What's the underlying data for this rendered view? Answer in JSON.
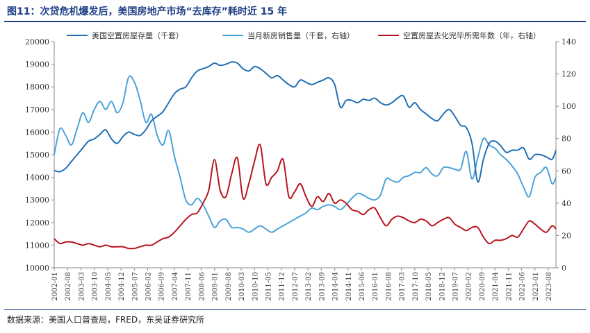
{
  "title": "图11：次贷危机爆发后，美国房地产市场“去库存”耗时近 15 年",
  "source": "数据来源：美国人口普查局，FRED，东吴证券研究所",
  "chart_data": {
    "type": "line",
    "legend_placement": "top",
    "grid": false,
    "x": [
      "2002-01",
      "2002-04",
      "2002-07",
      "2002-10",
      "2003-01",
      "2003-04",
      "2003-07",
      "2003-10",
      "2004-01",
      "2004-04",
      "2004-07",
      "2004-10",
      "2005-01",
      "2005-04",
      "2005-07",
      "2005-10",
      "2006-01",
      "2006-04",
      "2006-07",
      "2006-10",
      "2007-01",
      "2007-04",
      "2007-07",
      "2007-10",
      "2008-01",
      "2008-04",
      "2008-07",
      "2008-10",
      "2009-01",
      "2009-04",
      "2009-07",
      "2009-10",
      "2010-01",
      "2010-04",
      "2010-07",
      "2010-10",
      "2011-01",
      "2011-04",
      "2011-07",
      "2011-10",
      "2012-01",
      "2012-04",
      "2012-07",
      "2012-10",
      "2013-01",
      "2013-04",
      "2013-07",
      "2013-10",
      "2014-01",
      "2014-04",
      "2014-07",
      "2014-10",
      "2015-01",
      "2015-04",
      "2015-07",
      "2015-10",
      "2016-01",
      "2016-04",
      "2016-07",
      "2016-10",
      "2017-01",
      "2017-04",
      "2017-07",
      "2017-10",
      "2018-01",
      "2018-04",
      "2018-07",
      "2018-10",
      "2019-01",
      "2019-04",
      "2019-07",
      "2019-10",
      "2020-01",
      "2020-04",
      "2020-07",
      "2020-10",
      "2021-01",
      "2021-04",
      "2021-07",
      "2021-10",
      "2022-01",
      "2022-04",
      "2022-07",
      "2022-10",
      "2023-01",
      "2023-04",
      "2023-07",
      "2023-10",
      "2023-12"
    ],
    "x_tick_labels": [
      "2002-01",
      "2002-08",
      "2003-03",
      "2003-10",
      "2004-05",
      "2004-12",
      "2005-07",
      "2006-02",
      "2006-09",
      "2007-04",
      "2007-11",
      "2008-06",
      "2009-01",
      "2009-08",
      "2010-03",
      "2010-10",
      "2011-05",
      "2011-12",
      "2012-07",
      "2013-02",
      "2013-09",
      "2014-04",
      "2014-11",
      "2015-06",
      "2016-01",
      "2016-08",
      "2017-03",
      "2017-10",
      "2018-05",
      "2018-12",
      "2019-07",
      "2020-02",
      "2020-09",
      "2021-04",
      "2021-11",
      "2022-06",
      "2023-01",
      "2023-08"
    ],
    "y_left": {
      "min": 10000,
      "max": 20000,
      "ticks": [
        10000,
        11000,
        12000,
        13000,
        14000,
        15000,
        16000,
        17000,
        18000,
        19000,
        20000
      ]
    },
    "y_right": {
      "min": 0,
      "max": 140,
      "ticks": [
        0,
        20,
        40,
        60,
        80,
        100,
        120,
        140
      ]
    },
    "series": [
      {
        "name": "美国空置房屋存量（千套）",
        "axis": "left",
        "color": "#1f6fb5",
        "values": [
          14300,
          14250,
          14400,
          14700,
          15000,
          15300,
          15600,
          15700,
          15900,
          16100,
          15700,
          15500,
          15800,
          16000,
          15900,
          15850,
          16100,
          16500,
          16700,
          16900,
          17300,
          17700,
          17900,
          18000,
          18400,
          18700,
          18800,
          18900,
          19050,
          18950,
          19000,
          19100,
          19050,
          18800,
          18700,
          18900,
          18800,
          18600,
          18400,
          18500,
          18300,
          18100,
          18000,
          18300,
          18200,
          18100,
          18200,
          18300,
          18400,
          18100,
          17100,
          17400,
          17400,
          17300,
          17450,
          17400,
          17500,
          17300,
          17200,
          17300,
          17500,
          17600,
          17100,
          17300,
          17000,
          16800,
          16600,
          16500,
          16800,
          17000,
          16700,
          16300,
          16200,
          15500,
          13800,
          14800,
          15500,
          15600,
          15400,
          15100,
          15200,
          15200,
          15300,
          14800,
          15000,
          15000,
          14900,
          14800,
          15200
        ]
      },
      {
        "name": "当月新房销售量（千套，右轴）",
        "axis": "right",
        "color": "#4aa3d8",
        "values": [
          70,
          86,
          82,
          76,
          86,
          96,
          90,
          98,
          103,
          98,
          103,
          96,
          102,
          118,
          115,
          104,
          90,
          95,
          82,
          76,
          85,
          69,
          56,
          42,
          39,
          43,
          39,
          32,
          25,
          29,
          30,
          25,
          25,
          24,
          22,
          24,
          26,
          24,
          22,
          24,
          26,
          28,
          30,
          32,
          34,
          37,
          36,
          38,
          39,
          38,
          36,
          39,
          43,
          46,
          45,
          43,
          42,
          45,
          55,
          54,
          53,
          56,
          57,
          59,
          59,
          62,
          58,
          57,
          62,
          62,
          61,
          61,
          72,
          55,
          68,
          80,
          76,
          74,
          70,
          67,
          63,
          58,
          50,
          44,
          56,
          59,
          62,
          52,
          56
        ]
      },
      {
        "name": "空置房屋去化完毕所需年数（年，右轴）",
        "axis": "right",
        "color": "#b7141f",
        "values": [
          18,
          15,
          16,
          16,
          15,
          14,
          15,
          14,
          13,
          14,
          13,
          13,
          13,
          12,
          12,
          13,
          14,
          14,
          16,
          18,
          19,
          22,
          26,
          30,
          33,
          34,
          40,
          48,
          67,
          48,
          44,
          58,
          68,
          43,
          52,
          66,
          76,
          52,
          56,
          60,
          67,
          44,
          47,
          52,
          44,
          38,
          44,
          41,
          46,
          40,
          42,
          40,
          36,
          35,
          33,
          36,
          37,
          31,
          26,
          30,
          32,
          31,
          29,
          28,
          30,
          29,
          26,
          28,
          30,
          31,
          27,
          25,
          23,
          25,
          25,
          19,
          15,
          17,
          17,
          18,
          20,
          19,
          24,
          29,
          27,
          24,
          22,
          26,
          24
        ]
      }
    ]
  }
}
